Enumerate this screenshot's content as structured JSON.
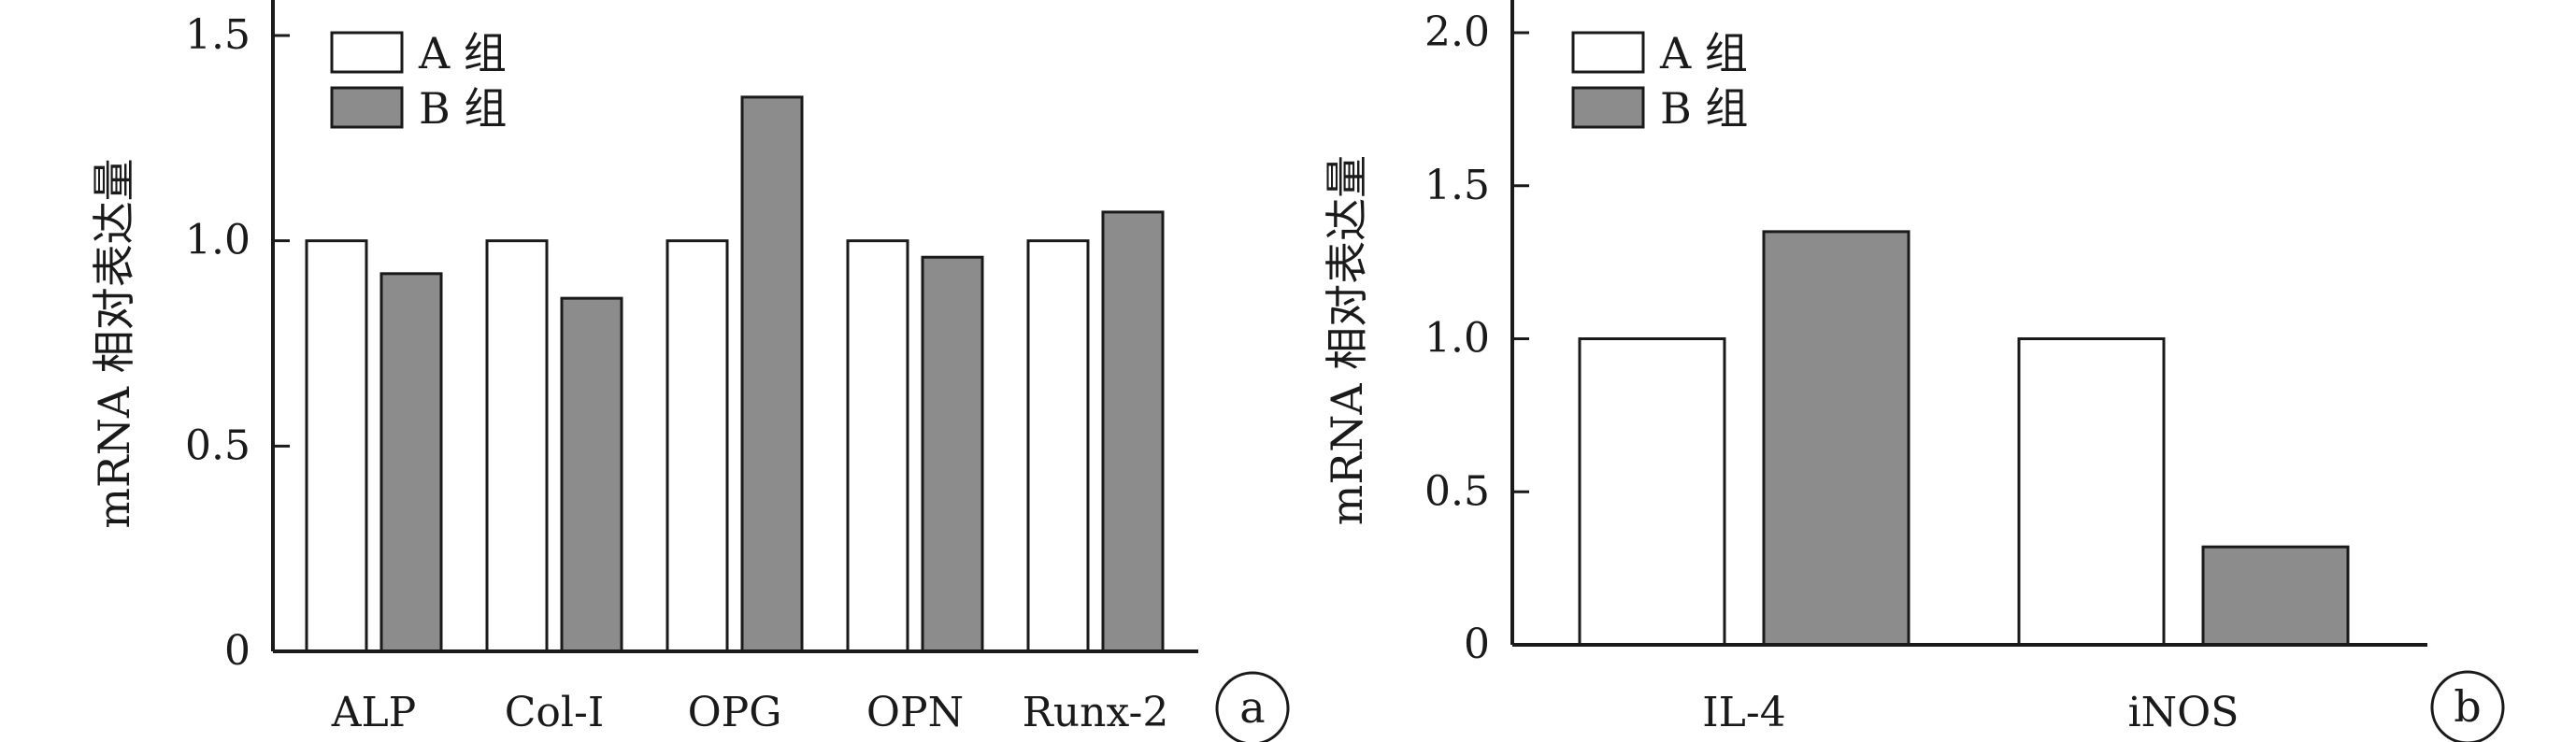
{
  "colors": {
    "A": "#ffffff",
    "B": "#8c8c8c",
    "axis": "#1a1a1a"
  },
  "chart_data": [
    {
      "type": "bar",
      "panel": "a",
      "title": "",
      "xlabel": "",
      "ylabel": "mRNA 相对表达量",
      "ylim": [
        0,
        1.5
      ],
      "yticks": [
        0,
        0.5,
        1.0,
        1.5
      ],
      "ytick_labels": [
        "0",
        "0.5",
        "1.0",
        "1.5"
      ],
      "grid": false,
      "legend_position": "top-left",
      "categories": [
        "ALP",
        "Col-Ⅰ",
        "OPG",
        "OPN",
        "Runx-2"
      ],
      "series": [
        {
          "name": "A 组",
          "values": [
            1.0,
            1.0,
            1.0,
            1.0,
            1.0
          ]
        },
        {
          "name": "B 组",
          "values": [
            0.92,
            0.86,
            1.35,
            0.96,
            1.07
          ]
        }
      ]
    },
    {
      "type": "bar",
      "panel": "b",
      "title": "",
      "xlabel": "",
      "ylabel": "mRNA 相对表达量",
      "ylim": [
        0,
        2.0
      ],
      "yticks": [
        0,
        0.5,
        1.0,
        1.5,
        2.0
      ],
      "ytick_labels": [
        "0",
        "0.5",
        "1.0",
        "1.5",
        "2.0"
      ],
      "grid": false,
      "legend_position": "top-left",
      "categories": [
        "IL-4",
        "iNOS"
      ],
      "series": [
        {
          "name": "A 组",
          "values": [
            1.0,
            1.0
          ]
        },
        {
          "name": "B 组",
          "values": [
            1.35,
            0.32
          ]
        }
      ]
    }
  ]
}
